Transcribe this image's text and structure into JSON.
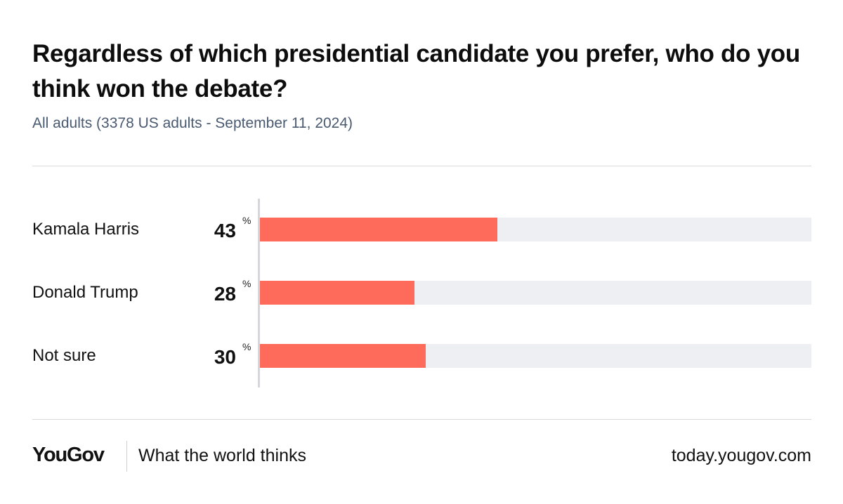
{
  "header": {
    "title": "Regardless of which presidential candidate you prefer, who do you think won the debate?",
    "subtitle": "All adults (3378 US adults - September 11, 2024)"
  },
  "chart_data": {
    "type": "bar",
    "orientation": "horizontal",
    "categories": [
      "Kamala Harris",
      "Donald Trump",
      "Not sure"
    ],
    "values": [
      43,
      28,
      30
    ],
    "value_labels": [
      "43",
      "28",
      "30"
    ],
    "unit": "%",
    "xlim": [
      0,
      100
    ],
    "bar_color": "#ff6b5b",
    "track_color": "#eeeff2",
    "grid": false,
    "legend": "none"
  },
  "footer": {
    "logo": "YouGov",
    "tagline": "What the world thinks",
    "url": "today.yougov.com"
  }
}
